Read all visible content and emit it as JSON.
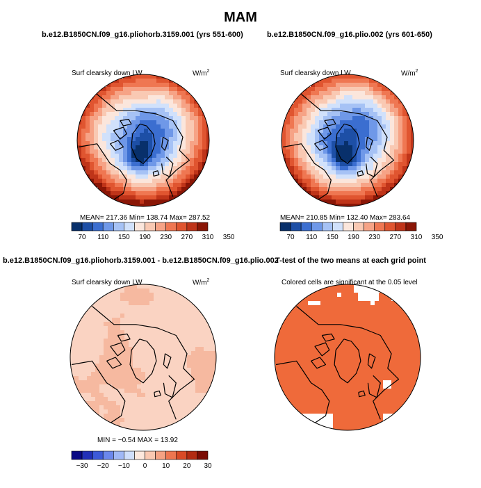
{
  "title": "MAM",
  "panels": [
    {
      "id": "top-left",
      "title": "b.e12.B1850CN.f09_g16.pliohorb.3159.001 (yrs 551-600)",
      "left_label": "Surf clearsky down LW",
      "units_base": "W/m",
      "units_exp": "2",
      "stats": "MEAN=  217.36   Min=  138.74   Max=  287.52",
      "colorbar": "abs",
      "field": "abs1"
    },
    {
      "id": "top-right",
      "title": "b.e12.B1850CN.f09_g16.plio.002 (yrs 601-650)",
      "left_label": "Surf clearsky down LW",
      "units_base": "W/m",
      "units_exp": "2",
      "stats": "MEAN=  210.85   Min=  132.40   Max=  283.64",
      "colorbar": "abs",
      "field": "abs2"
    },
    {
      "id": "bottom-left",
      "title": "b.e12.B1850CN.f09_g16.pliohorb.3159.001 - b.e12.B1850CN.f09_g16.plio.002",
      "left_label": "Surf clearsky down LW",
      "units_base": "W/m",
      "units_exp": "2",
      "stats": "MIN =  −0.54  MAX =   13.92",
      "colorbar": "diff",
      "field": "diff"
    },
    {
      "id": "bottom-right",
      "title": "T-test of the two means at each grid point",
      "left_label": "Colored cells are significant at the 0.05 level",
      "field": "ttest"
    }
  ],
  "colors": {
    "abs": [
      "#08306b",
      "#1d4fa6",
      "#3b6ed0",
      "#6f98e8",
      "#a6c2f5",
      "#d1e1fb",
      "#fbe6dc",
      "#f9c9b3",
      "#f6a386",
      "#ef7752",
      "#e05530",
      "#bf3419",
      "#8a1606"
    ],
    "diff": [
      "#0a0a84",
      "#2230b8",
      "#3d5ad8",
      "#6b87ec",
      "#a0b8f6",
      "#d0dffb",
      "#fde8dd",
      "#fac8b1",
      "#f5a283",
      "#ee7650",
      "#d94a26",
      "#b22b12",
      "#7a0c04"
    ]
  },
  "chart_data": [
    {
      "type": "heatmap",
      "title": "b.e12.B1850CN.f09_g16.pliohorb.3159.001 (yrs 551-600)",
      "variable": "Surf clearsky down LW",
      "units": "W/m2",
      "projection": "north polar stereographic",
      "mean": 217.36,
      "min": 138.74,
      "max": 287.52,
      "colorbar_levels": [
        70,
        90,
        110,
        130,
        150,
        170,
        190,
        210,
        230,
        250,
        270,
        290,
        310,
        330,
        350
      ],
      "colorbar_tick_labels": [
        "70",
        "110",
        "150",
        "190",
        "230",
        "270",
        "310",
        "350"
      ]
    },
    {
      "type": "heatmap",
      "title": "b.e12.B1850CN.f09_g16.plio.002 (yrs 601-650)",
      "variable": "Surf clearsky down LW",
      "units": "W/m2",
      "projection": "north polar stereographic",
      "mean": 210.85,
      "min": 132.4,
      "max": 283.64,
      "colorbar_levels": [
        70,
        90,
        110,
        130,
        150,
        170,
        190,
        210,
        230,
        250,
        270,
        290,
        310,
        330,
        350
      ],
      "colorbar_tick_labels": [
        "70",
        "110",
        "150",
        "190",
        "230",
        "270",
        "310",
        "350"
      ]
    },
    {
      "type": "heatmap",
      "title": "b.e12.B1850CN.f09_g16.pliohorb.3159.001 - b.e12.B1850CN.f09_g16.plio.002",
      "variable": "Surf clearsky down LW",
      "units": "W/m2",
      "projection": "north polar stereographic",
      "min": -0.54,
      "max": 13.92,
      "colorbar_levels": [
        -30,
        -25,
        -20,
        -15,
        -10,
        -5,
        0,
        5,
        10,
        15,
        20,
        25,
        30
      ],
      "colorbar_tick_labels": [
        "−30",
        "−20",
        "−10",
        "0",
        "10",
        "20",
        "30"
      ]
    },
    {
      "type": "heatmap",
      "title": "T-test of the two means at each grid point",
      "annotation": "Colored cells are significant at the 0.05 level",
      "significance_level": 0.05,
      "projection": "north polar stereographic"
    }
  ]
}
